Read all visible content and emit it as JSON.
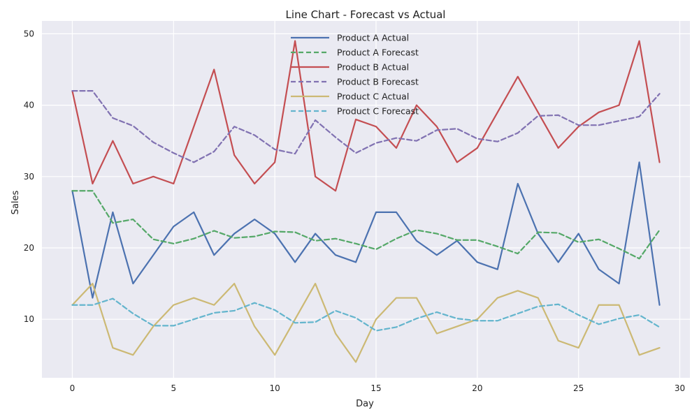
{
  "chart_data": {
    "type": "line",
    "title": "Line Chart - Forecast vs Actual",
    "xlabel": "Day",
    "ylabel": "Sales",
    "xlim": [
      -1.5,
      30.5
    ],
    "ylim": [
      1.8,
      51.8
    ],
    "xticks": [
      0,
      5,
      10,
      15,
      20,
      25,
      30
    ],
    "yticks": [
      10,
      20,
      30,
      40,
      50
    ],
    "grid": true,
    "legend_position": "top-center",
    "background_color": "#eaeaf2",
    "x": [
      0,
      1,
      2,
      3,
      4,
      5,
      6,
      7,
      8,
      9,
      10,
      11,
      12,
      13,
      14,
      15,
      16,
      17,
      18,
      19,
      20,
      21,
      22,
      23,
      24,
      25,
      26,
      27,
      28,
      29
    ],
    "series": [
      {
        "name": "Product A Actual",
        "color": "#4c72b0",
        "style": "solid",
        "values": [
          28,
          13,
          25,
          15,
          19,
          23,
          25,
          19,
          22,
          24,
          22,
          18,
          22,
          19,
          18,
          25,
          25,
          21,
          19,
          21,
          18,
          17,
          29,
          22,
          18,
          22,
          17,
          15,
          32,
          12
        ]
      },
      {
        "name": "Product A Forecast",
        "color": "#55a868",
        "style": "dashed",
        "values": [
          28,
          28,
          23.5,
          24,
          21.2,
          20.6,
          21.3,
          22.4,
          21.4,
          21.6,
          22.3,
          22.2,
          21,
          21.3,
          20.6,
          19.8,
          21.3,
          22.5,
          22,
          21.1,
          21.1,
          20.2,
          19.2,
          22.2,
          22.1,
          20.8,
          21.2,
          19.9,
          18.5,
          22.5
        ]
      },
      {
        "name": "Product B Actual",
        "color": "#c44e52",
        "style": "solid",
        "values": [
          42,
          29,
          35,
          29,
          30,
          29,
          37,
          45,
          33,
          29,
          32,
          49,
          30,
          28,
          38,
          37,
          34,
          40,
          37,
          32,
          34,
          39,
          44,
          39,
          34,
          37,
          39,
          40,
          49,
          32
        ]
      },
      {
        "name": "Product B Forecast",
        "color": "#8172b2",
        "style": "dashed",
        "values": [
          42,
          42,
          38.2,
          37.1,
          34.8,
          33.3,
          32,
          33.5,
          37,
          35.8,
          33.8,
          33.2,
          37.9,
          35.5,
          33.3,
          34.7,
          35.4,
          35,
          36.5,
          36.7,
          35.3,
          34.9,
          36.1,
          38.5,
          38.6,
          37.2,
          37.2,
          37.8,
          38.4,
          41.6
        ]
      },
      {
        "name": "Product C Actual",
        "color": "#ccb974",
        "style": "solid",
        "values": [
          12,
          15,
          6,
          5,
          9,
          12,
          13,
          12,
          15,
          9,
          5,
          10,
          15,
          8,
          4,
          10,
          13,
          13,
          8,
          9,
          10,
          13,
          14,
          13,
          7,
          6,
          12,
          12,
          5,
          6
        ]
      },
      {
        "name": "Product C Forecast",
        "color": "#64b5cd",
        "style": "dashed",
        "values": [
          12,
          12,
          12.9,
          10.8,
          9.1,
          9.1,
          10,
          10.9,
          11.2,
          12.3,
          11.3,
          9.5,
          9.6,
          11.2,
          10.2,
          8.4,
          8.9,
          10.1,
          11,
          10.1,
          9.8,
          9.8,
          10.8,
          11.8,
          12.1,
          10.6,
          9.3,
          10.1,
          10.6,
          8.9
        ]
      }
    ]
  }
}
